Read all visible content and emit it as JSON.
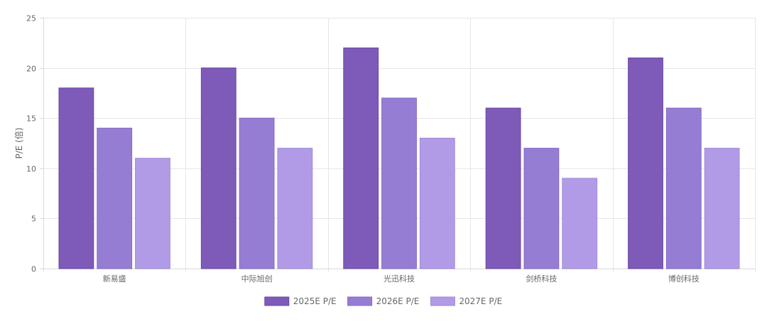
{
  "chart_data": {
    "type": "bar",
    "categories": [
      "新易盛",
      "中际旭创",
      "光迅科技",
      "剑桥科技",
      "博创科技"
    ],
    "series": [
      {
        "name": "2025E P/E",
        "values": [
          18,
          20,
          22,
          16,
          21
        ],
        "color": "#7e5bb8",
        "border": "#6a46a8"
      },
      {
        "name": "2026E P/E",
        "values": [
          14,
          15,
          17,
          12,
          16
        ],
        "color": "#967dd4",
        "border": "#8468c8"
      },
      {
        "name": "2027E P/E",
        "values": [
          11,
          12,
          13,
          9,
          12
        ],
        "color": "#b19be6",
        "border": "#a08ad9"
      }
    ],
    "ylabel": "P/E (倍)",
    "ylim": [
      0,
      25
    ],
    "yticks": [
      0,
      5,
      10,
      15,
      20,
      25
    ],
    "grid": true,
    "legend": "bottom-center"
  }
}
